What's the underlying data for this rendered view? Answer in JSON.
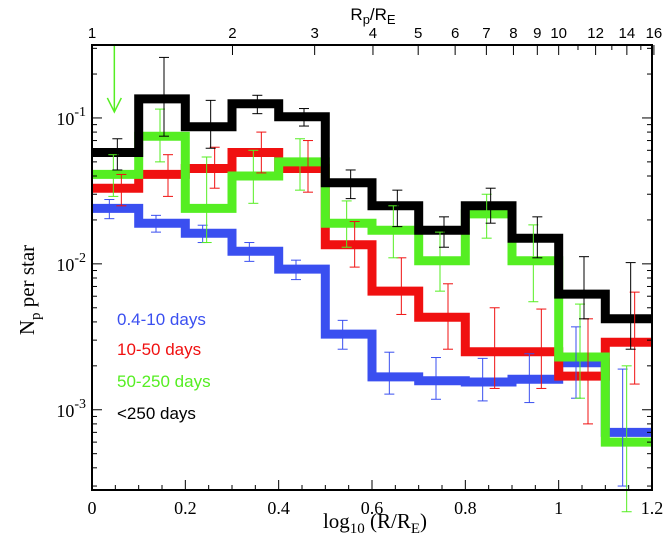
{
  "chart_data": {
    "type": "line",
    "step": true,
    "xlabel": "log10 (R/RE)",
    "ylabel": "Np per star",
    "xlim": [
      0,
      1.2
    ],
    "ylim_log10": [
      -3.55,
      -0.5
    ],
    "x_ticks": [
      {
        "value": 0,
        "label": "0"
      },
      {
        "value": 0.2,
        "label": "0.2"
      },
      {
        "value": 0.4,
        "label": "0.4"
      },
      {
        "value": 0.6,
        "label": "0.6"
      },
      {
        "value": 0.8,
        "label": "0.8"
      },
      {
        "value": 1.0,
        "label": "1"
      },
      {
        "value": 1.2,
        "label": "1.2"
      }
    ],
    "y_ticks": [
      {
        "value": 0.1,
        "base": "10",
        "exp": "-1"
      },
      {
        "value": 0.01,
        "base": "10",
        "exp": "-2"
      },
      {
        "value": 0.001,
        "base": "10",
        "exp": "-3"
      }
    ],
    "top_axis": {
      "title_main": "R",
      "title_sub1": "p",
      "title_mid": "/R",
      "title_sub2": "E",
      "ticks": [
        "1",
        "2",
        "3",
        "4",
        "5",
        "6",
        "7",
        "8",
        "9",
        "10",
        "12",
        "14",
        "16"
      ]
    },
    "bin_edges": [
      0,
      0.1,
      0.2,
      0.3,
      0.4,
      0.5,
      0.6,
      0.7,
      0.8,
      0.9,
      1.0,
      1.1,
      1.2
    ],
    "series": [
      {
        "name": "0.4-10 days",
        "color": "#3a4ff0",
        "values": [
          0.024,
          0.019,
          0.0162,
          0.0122,
          0.0092,
          0.0033,
          0.00168,
          0.00158,
          0.00155,
          0.00162,
          0.0021,
          0.0007
        ],
        "err_lo": [
          0.0036,
          0.0025,
          0.0022,
          0.0018,
          0.0014,
          0.0007,
          0.0004,
          0.0004,
          0.0004,
          0.0005,
          0.0009,
          0.0004
        ],
        "err_hi": [
          0.0036,
          0.0025,
          0.0022,
          0.0018,
          0.0014,
          0.0008,
          0.0008,
          0.0007,
          0.0007,
          0.0008,
          0.0016,
          0.0012
        ]
      },
      {
        "name": "10-50 days",
        "color": "#f01010",
        "values": [
          0.033,
          0.041,
          0.045,
          0.058,
          0.045,
          0.0135,
          0.0065,
          0.0043,
          0.0025,
          0.0025,
          0.0017,
          0.0029
        ],
        "err_lo": [
          0.008,
          0.012,
          0.012,
          0.016,
          0.014,
          0.004,
          0.002,
          0.0017,
          0.0011,
          0.0011,
          0.0009,
          0.0014
        ],
        "err_hi": [
          0.008,
          0.015,
          0.018,
          0.022,
          0.025,
          0.006,
          0.0045,
          0.003,
          0.0025,
          0.0024,
          0.0025,
          0.0035
        ]
      },
      {
        "name": "50-250 days",
        "color": "#55ee22",
        "values": [
          0.041,
          0.075,
          0.024,
          0.04,
          0.05,
          0.019,
          0.017,
          0.0105,
          0.022,
          0.0105,
          0.0023,
          0.0006
        ],
        "err_lo": [
          0.012,
          0.025,
          0.01,
          0.014,
          0.018,
          0.006,
          0.006,
          0.004,
          0.007,
          0.005,
          0.0011,
          0.0004
        ],
        "err_hi": [
          0.015,
          0.04,
          0.03,
          0.02,
          0.022,
          0.008,
          0.008,
          0.006,
          0.008,
          0.008,
          0.003,
          0.0014
        ]
      },
      {
        "name": "<250 days",
        "color": "#000000",
        "values": [
          0.058,
          0.135,
          0.087,
          0.125,
          0.102,
          0.036,
          0.025,
          0.017,
          0.025,
          0.015,
          0.0062,
          0.0042
        ],
        "err_lo": [
          0.014,
          0.06,
          0.025,
          0.018,
          0.014,
          0.008,
          0.007,
          0.004,
          0.006,
          0.004,
          0.002,
          0.0016
        ],
        "err_hi": [
          0.014,
          0.125,
          0.045,
          0.018,
          0.014,
          0.008,
          0.007,
          0.004,
          0.008,
          0.006,
          0.005,
          0.006
        ]
      }
    ],
    "upper_limit": {
      "x": 0.05,
      "y_top": 0.3,
      "y_bottom": 0.11,
      "color": "#55ee22"
    },
    "legend_position": "lower-left"
  }
}
